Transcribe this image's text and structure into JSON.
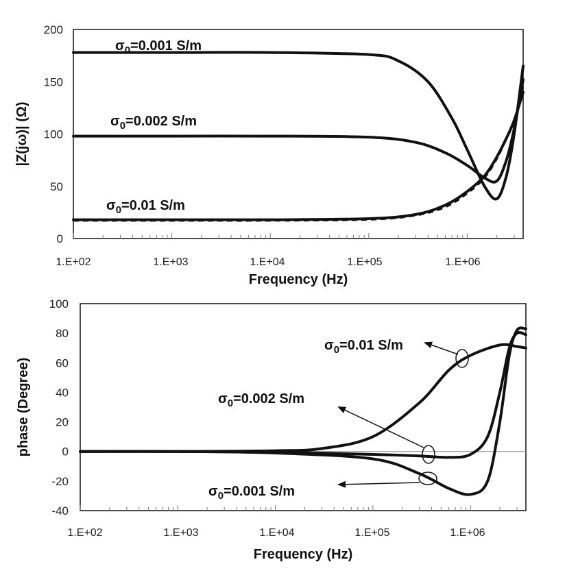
{
  "chart_data": [
    {
      "type": "line",
      "xlabel": "Frequency (Hz)",
      "ylabel": "|Z(jω)| (Ω)",
      "xscale": "log",
      "xlim": [
        100,
        3700000
      ],
      "ylim": [
        0,
        200
      ],
      "xticks": [
        "1.E+02",
        "1.E+03",
        "1.E+04",
        "1.E+05",
        "1.E+06"
      ],
      "yticks": [
        "0",
        "50",
        "100",
        "150",
        "200"
      ],
      "grid": false,
      "annotations": [
        "σ₀=0.001 S/m",
        "σ₀=0.002 S/m",
        "σ₀=0.01 S/m"
      ],
      "series": [
        {
          "name": "σ₀=0.001 S/m",
          "style": "solid",
          "x": [
            100,
            1000,
            10000,
            100000,
            200000,
            400000,
            700000,
            1000000,
            1500000,
            2000000,
            2500000,
            3000000,
            3700000
          ],
          "y": [
            178,
            178,
            178,
            176,
            170,
            150,
            115,
            85,
            50,
            38,
            60,
            100,
            165
          ]
        },
        {
          "name": "σ₀=0.002 S/m",
          "style": "solid",
          "x": [
            100,
            1000,
            10000,
            100000,
            300000,
            600000,
            1000000,
            1500000,
            2000000,
            2500000,
            3000000,
            3700000
          ],
          "y": [
            98,
            98,
            98,
            97,
            92,
            82,
            70,
            58,
            55,
            75,
            105,
            152
          ]
        },
        {
          "name": "σ₀=0.01 S/m",
          "style": "solid",
          "x": [
            100,
            1000,
            10000,
            100000,
            300000,
            600000,
            1000000,
            1500000,
            2000000,
            2500000,
            3000000,
            3700000
          ],
          "y": [
            18,
            18,
            18,
            19,
            23,
            32,
            45,
            60,
            78,
            96,
            113,
            140
          ]
        },
        {
          "name": "",
          "style": "dashed",
          "x": [
            100,
            1000,
            10000,
            100000,
            300000,
            600000,
            1000000,
            1500000,
            2000000,
            2500000,
            3000000,
            3700000
          ],
          "y": [
            17,
            17,
            17,
            18,
            22,
            30,
            43,
            58,
            76,
            95,
            112,
            145
          ]
        }
      ]
    },
    {
      "type": "line",
      "xlabel": "Frequency (Hz)",
      "ylabel": "phase (Degree)",
      "xscale": "log",
      "xlim": [
        100,
        3700000
      ],
      "ylim": [
        -40,
        100
      ],
      "xticks": [
        "1.E+02",
        "1.E+03",
        "1.E+04",
        "1.E+05",
        "1.E+06"
      ],
      "yticks": [
        "-40",
        "-20",
        "0",
        "20",
        "40",
        "60",
        "80",
        "100"
      ],
      "grid": false,
      "annotations": [
        "σ₀=0.01 S/m",
        "σ₀=0.002 S/m",
        "σ₀=0.001 S/m"
      ],
      "series": [
        {
          "name": "σ₀=0.01 S/m",
          "x": [
            100,
            1000,
            10000,
            30000,
            100000,
            300000,
            600000,
            1000000,
            2000000,
            3000000,
            3700000
          ],
          "y": [
            0,
            0,
            0.5,
            2,
            10,
            33,
            55,
            65,
            72,
            71,
            70
          ]
        },
        {
          "name": "σ₀=0.002 S/m",
          "x": [
            100,
            1000,
            10000,
            100000,
            300000,
            600000,
            1000000,
            1500000,
            2000000,
            2500000,
            3000000,
            3700000
          ],
          "y": [
            0,
            0,
            -0.5,
            -2,
            -3,
            -4,
            -2,
            10,
            40,
            70,
            80,
            79
          ]
        },
        {
          "name": "σ₀=0.001 S/m",
          "x": [
            100,
            1000,
            10000,
            100000,
            300000,
            600000,
            1000000,
            1500000,
            2000000,
            2500000,
            3000000,
            3700000
          ],
          "y": [
            0,
            0,
            -1,
            -5,
            -15,
            -25,
            -29,
            -20,
            20,
            65,
            82,
            83
          ]
        }
      ]
    }
  ]
}
